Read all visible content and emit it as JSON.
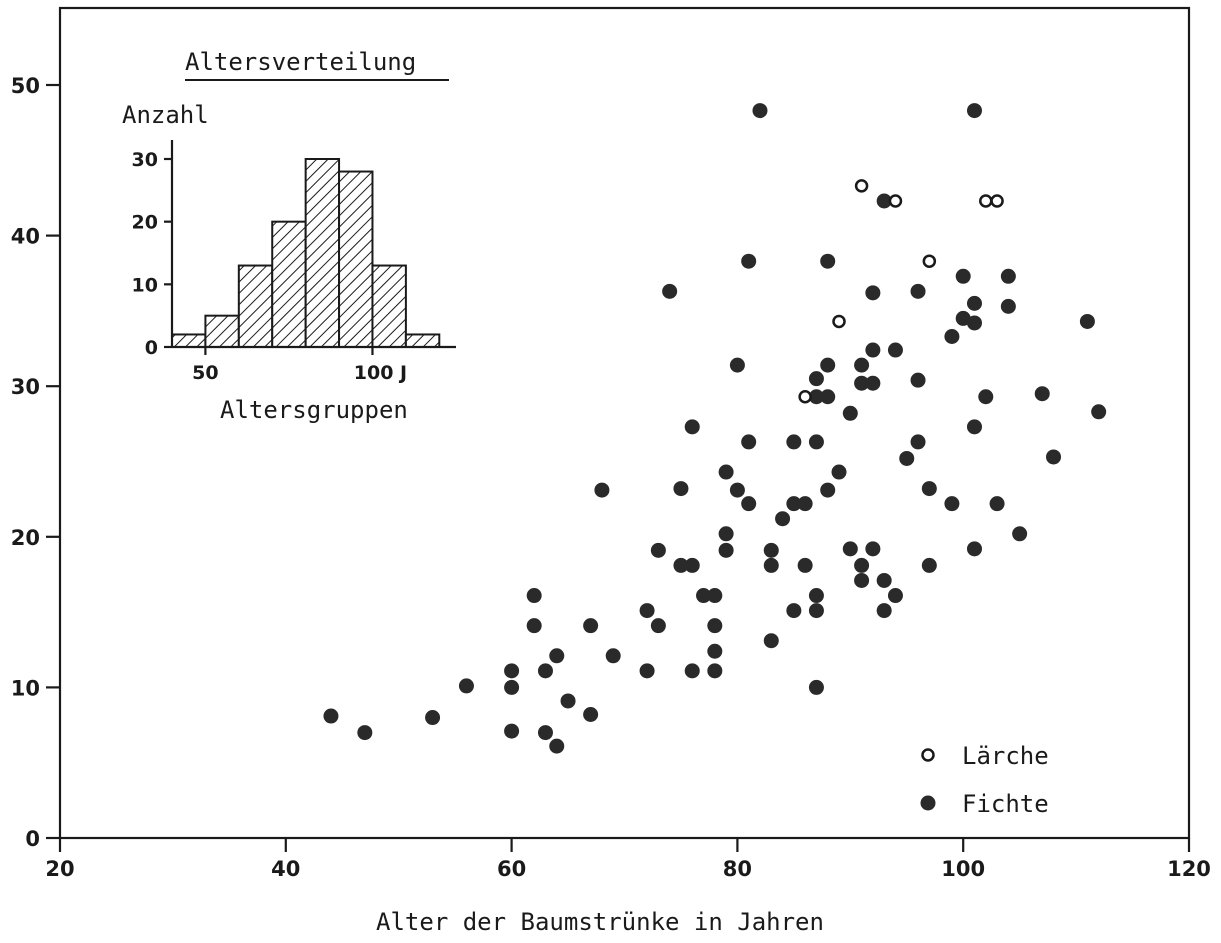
{
  "chart_data": [
    {
      "type": "scatter",
      "xlabel": "Alter der Baumstrünke in Jahren",
      "ylabel": "",
      "xlim": [
        20,
        120
      ],
      "ylim": [
        0,
        55
      ],
      "x_ticks": [
        "20",
        "40",
        "60",
        "80",
        "100",
        "120"
      ],
      "y_ticks": [
        "0",
        "10",
        "20",
        "30",
        "40",
        "50"
      ],
      "legend_position": "bottom-right",
      "grid": false,
      "series": [
        {
          "name": "Lärche",
          "marker": "open-circle",
          "points": [
            [
              91,
              43.3
            ],
            [
              94,
              42.3
            ],
            [
              102,
              42.3
            ],
            [
              103,
              42.3
            ],
            [
              97,
              38.3
            ],
            [
              89,
              34.3
            ],
            [
              86,
              29.3
            ]
          ]
        },
        {
          "name": "Fichte",
          "marker": "filled-circle",
          "points": [
            [
              82,
              48.3
            ],
            [
              101,
              48.3
            ],
            [
              93,
              42.3
            ],
            [
              81,
              38.3
            ],
            [
              88,
              38.3
            ],
            [
              74,
              36.3
            ],
            [
              92,
              36.2
            ],
            [
              96,
              36.3
            ],
            [
              100,
              37.3
            ],
            [
              104,
              37.3
            ],
            [
              101,
              35.5
            ],
            [
              104,
              35.3
            ],
            [
              100,
              34.5
            ],
            [
              101,
              34.2
            ],
            [
              99,
              33.3
            ],
            [
              111,
              34.3
            ],
            [
              80,
              31.4
            ],
            [
              88,
              31.4
            ],
            [
              91,
              31.4
            ],
            [
              92,
              32.4
            ],
            [
              94,
              32.4
            ],
            [
              87,
              30.5
            ],
            [
              91,
              30.2
            ],
            [
              92,
              30.2
            ],
            [
              96,
              30.4
            ],
            [
              87,
              29.3
            ],
            [
              88,
              29.3
            ],
            [
              102,
              29.3
            ],
            [
              107,
              29.5
            ],
            [
              112,
              28.3
            ],
            [
              90,
              28.2
            ],
            [
              76,
              27.3
            ],
            [
              101,
              27.3
            ],
            [
              81,
              26.3
            ],
            [
              85,
              26.3
            ],
            [
              87,
              26.3
            ],
            [
              96,
              26.3
            ],
            [
              95,
              25.2
            ],
            [
              108,
              25.3
            ],
            [
              79,
              24.3
            ],
            [
              89,
              24.3
            ],
            [
              75,
              23.2
            ],
            [
              68,
              23.1
            ],
            [
              80,
              23.1
            ],
            [
              88,
              23.1
            ],
            [
              97,
              23.2
            ],
            [
              81,
              22.2
            ],
            [
              85,
              22.2
            ],
            [
              86,
              22.2
            ],
            [
              99,
              22.2
            ],
            [
              103,
              22.2
            ],
            [
              84,
              21.2
            ],
            [
              79,
              20.2
            ],
            [
              105,
              20.2
            ],
            [
              73,
              19.1
            ],
            [
              79,
              19.1
            ],
            [
              83,
              19.1
            ],
            [
              90,
              19.2
            ],
            [
              92,
              19.2
            ],
            [
              101,
              19.2
            ],
            [
              75,
              18.1
            ],
            [
              76,
              18.1
            ],
            [
              83,
              18.1
            ],
            [
              86,
              18.1
            ],
            [
              91,
              18.1
            ],
            [
              97,
              18.1
            ],
            [
              91,
              17.1
            ],
            [
              93,
              17.1
            ],
            [
              62,
              16.1
            ],
            [
              77,
              16.1
            ],
            [
              78,
              16.1
            ],
            [
              87,
              16.1
            ],
            [
              94,
              16.1
            ],
            [
              72,
              15.1
            ],
            [
              85,
              15.1
            ],
            [
              87,
              15.1
            ],
            [
              93,
              15.1
            ],
            [
              62,
              14.1
            ],
            [
              67,
              14.1
            ],
            [
              73,
              14.1
            ],
            [
              78,
              14.1
            ],
            [
              83,
              13.1
            ],
            [
              64,
              12.1
            ],
            [
              69,
              12.1
            ],
            [
              78,
              12.4
            ],
            [
              60,
              11.1
            ],
            [
              63,
              11.1
            ],
            [
              72,
              11.1
            ],
            [
              76,
              11.1
            ],
            [
              78,
              11.1
            ],
            [
              56,
              10.1
            ],
            [
              60,
              10.0
            ],
            [
              87,
              10.0
            ],
            [
              65,
              9.1
            ],
            [
              44,
              8.1
            ],
            [
              53,
              8.0
            ],
            [
              67,
              8.2
            ],
            [
              47,
              7.0
            ],
            [
              60,
              7.1
            ],
            [
              63,
              7.0
            ],
            [
              64,
              6.1
            ]
          ]
        }
      ]
    },
    {
      "type": "bar",
      "title": "Altersverteilung",
      "ylabel": "Anzahl",
      "xlabel": "Altersgruppen",
      "x_ticks": [
        "50",
        "100 J"
      ],
      "y_ticks": [
        "0",
        "10",
        "20",
        "30"
      ],
      "xlim": [
        40,
        125
      ],
      "ylim": [
        0,
        33
      ],
      "bin_width": 10,
      "categories": [
        "40-50",
        "50-60",
        "60-70",
        "70-80",
        "80-90",
        "90-100",
        "100-110",
        "110-120"
      ],
      "values": [
        2,
        5,
        13,
        20,
        30,
        28,
        13,
        2
      ]
    }
  ]
}
